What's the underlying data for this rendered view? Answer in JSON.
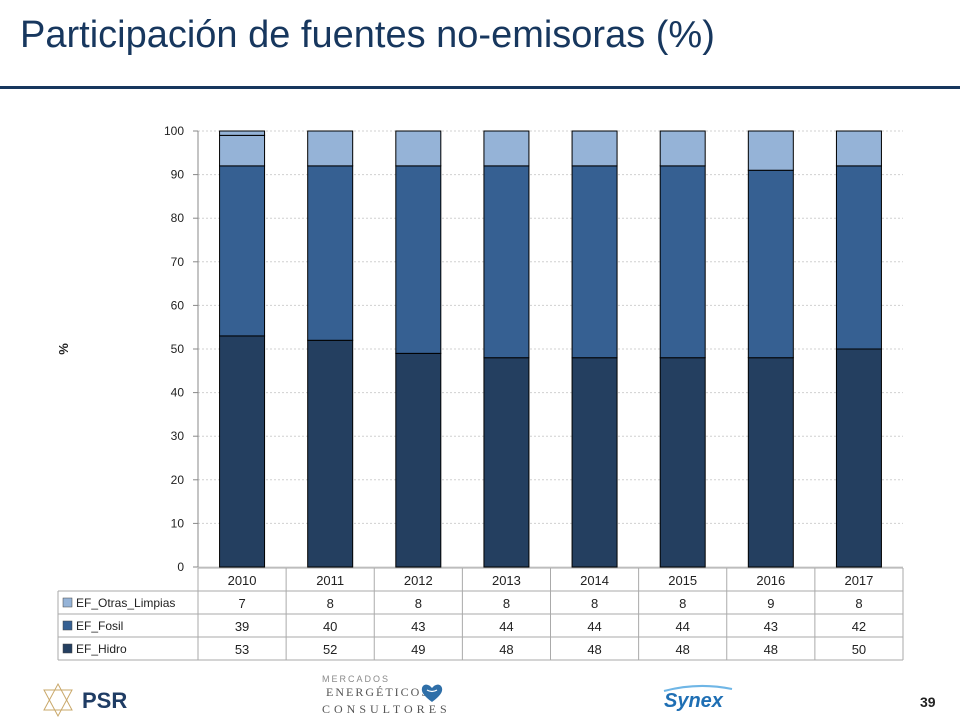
{
  "page": {
    "title": "Participación de fuentes no-emisoras (%)",
    "page_number": "39"
  },
  "logos": {
    "psr": "PSR",
    "mec_line1": "MERCADOS",
    "mec_line2": "ENERGÉTICOS",
    "mec_line3": "CONSULTORES",
    "synex": "Synex"
  },
  "chart_data": {
    "type": "bar",
    "stacked": true,
    "categories": [
      "2010",
      "2011",
      "2012",
      "2013",
      "2014",
      "2015",
      "2016",
      "2017"
    ],
    "ylabel": "%",
    "ylim": [
      0,
      100
    ],
    "yticks": [
      0,
      10,
      20,
      30,
      40,
      50,
      60,
      70,
      80,
      90,
      100
    ],
    "grid": true,
    "legend": "data-table-below",
    "series": [
      {
        "name": "EF_Hidro",
        "values": [
          53,
          52,
          49,
          48,
          48,
          48,
          48,
          50
        ],
        "color": "#243f60"
      },
      {
        "name": "EF_Fosil",
        "values": [
          39,
          40,
          43,
          44,
          44,
          44,
          43,
          42
        ],
        "color": "#366092"
      },
      {
        "name": "EF_Otras_Limpias",
        "values": [
          7,
          8,
          8,
          8,
          8,
          8,
          9,
          8
        ],
        "color": "#95b3d7"
      }
    ],
    "table_row_order": [
      "EF_Otras_Limpias",
      "EF_Fosil",
      "EF_Hidro"
    ]
  }
}
